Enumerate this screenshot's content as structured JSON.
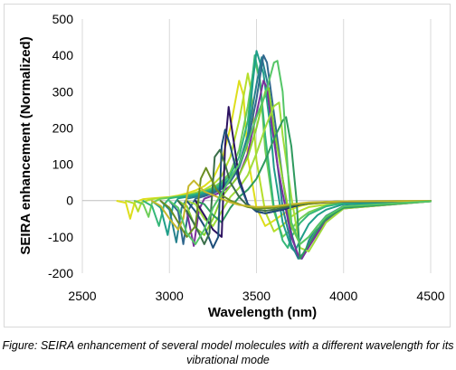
{
  "chart_data": {
    "type": "line",
    "xlabel": "Wavelength (nm)",
    "ylabel": "SEIRA enhancement (Normalized)",
    "xlim": [
      2500,
      4500
    ],
    "ylim": [
      -200,
      500
    ],
    "xticks": [
      2500,
      3000,
      3500,
      4000,
      4500
    ],
    "yticks": [
      -200,
      -100,
      0,
      100,
      200,
      300,
      400,
      500
    ],
    "grid": "vertical",
    "legend": "none",
    "series": [
      {
        "color": "#dede1c",
        "x": [
          2700,
          2750,
          2775,
          2800,
          2850,
          2900,
          2950,
          3000,
          3050,
          3100,
          3150,
          3200,
          3250,
          3300,
          3350,
          3400,
          3425,
          3450,
          3500,
          3550,
          3600,
          3650,
          3700,
          3750,
          3800,
          3900,
          4000,
          4500
        ],
        "y": [
          -1,
          -6,
          -50,
          -5,
          4,
          6,
          8,
          10,
          14,
          20,
          28,
          40,
          60,
          110,
          200,
          330,
          290,
          120,
          -20,
          -70,
          -55,
          -38,
          -24,
          -15,
          -10,
          -5,
          -3,
          -1
        ]
      },
      {
        "color": "#b5de2b",
        "x": [
          2750,
          2800,
          2820,
          2840,
          2900,
          2950,
          3000,
          3050,
          3100,
          3150,
          3200,
          3250,
          3300,
          3350,
          3400,
          3450,
          3470,
          3500,
          3550,
          3600,
          3650,
          3700,
          3750,
          3800,
          3900,
          4000,
          4500
        ],
        "y": [
          -1,
          -8,
          -30,
          -5,
          4,
          7,
          9,
          12,
          16,
          22,
          30,
          44,
          68,
          120,
          220,
          350,
          300,
          110,
          -30,
          -85,
          -68,
          -44,
          -28,
          -18,
          -11,
          -5,
          -1
        ]
      },
      {
        "color": "#6ece58",
        "x": [
          2800,
          2850,
          2880,
          2900,
          2950,
          3000,
          3050,
          3100,
          3150,
          3200,
          3250,
          3300,
          3350,
          3400,
          3450,
          3490,
          3520,
          3550,
          3600,
          3650,
          3700,
          3750,
          3800,
          3900,
          4000,
          4500
        ],
        "y": [
          -1,
          -10,
          -45,
          -6,
          5,
          8,
          11,
          14,
          19,
          26,
          36,
          52,
          78,
          140,
          260,
          385,
          330,
          140,
          -30,
          -100,
          -78,
          -50,
          -32,
          -14,
          -6,
          -1
        ]
      },
      {
        "color": "#35b779",
        "x": [
          2850,
          2900,
          2940,
          2970,
          3000,
          3050,
          3100,
          3150,
          3200,
          3250,
          3300,
          3350,
          3400,
          3450,
          3490,
          3520,
          3550,
          3600,
          3650,
          3680,
          3700,
          3750,
          3800,
          3900,
          4000,
          4500
        ],
        "y": [
          -1,
          -15,
          -70,
          -10,
          6,
          10,
          14,
          18,
          24,
          32,
          46,
          70,
          120,
          220,
          400,
          330,
          180,
          -20,
          -110,
          -130,
          -100,
          -62,
          -38,
          -16,
          -7,
          -1
        ]
      },
      {
        "color": "#1f9e89",
        "x": [
          2900,
          2950,
          2990,
          3020,
          3050,
          3100,
          3150,
          3200,
          3250,
          3300,
          3350,
          3400,
          3450,
          3480,
          3500,
          3540,
          3580,
          3600,
          3650,
          3700,
          3720,
          3750,
          3800,
          3850,
          3900,
          4000,
          4500
        ],
        "y": [
          -1,
          -20,
          -95,
          -15,
          6,
          10,
          14,
          20,
          28,
          40,
          62,
          100,
          180,
          330,
          412,
          350,
          200,
          90,
          -60,
          -130,
          -140,
          -110,
          -65,
          -40,
          -25,
          -10,
          -1
        ]
      },
      {
        "color": "#26828e",
        "x": [
          2950,
          3000,
          3040,
          3070,
          3100,
          3150,
          3200,
          3250,
          3300,
          3350,
          3400,
          3450,
          3500,
          3530,
          3560,
          3600,
          3650,
          3700,
          3740,
          3780,
          3800,
          3850,
          3900,
          4000,
          4500
        ],
        "y": [
          -1,
          -25,
          -115,
          -20,
          5,
          10,
          16,
          24,
          36,
          58,
          100,
          180,
          320,
          395,
          330,
          180,
          -20,
          -120,
          -160,
          -140,
          -110,
          -70,
          -42,
          -15,
          -1
        ]
      },
      {
        "color": "#31688e",
        "x": [
          3000,
          3050,
          3080,
          3110,
          3150,
          3200,
          3250,
          3300,
          3350,
          3400,
          3450,
          3500,
          3540,
          3560,
          3600,
          3650,
          3700,
          3740,
          3760,
          3800,
          3850,
          3900,
          4000,
          4500
        ],
        "y": [
          -1,
          -30,
          -120,
          -25,
          5,
          12,
          20,
          32,
          52,
          90,
          160,
          280,
          400,
          380,
          240,
          60,
          -90,
          -155,
          -160,
          -125,
          -85,
          -55,
          -20,
          -2
        ]
      },
      {
        "color": "#7b2f9b",
        "x": [
          3050,
          3100,
          3140,
          3170,
          3200,
          3250,
          3300,
          3350,
          3400,
          3450,
          3500,
          3540,
          3560,
          3590,
          3620,
          3650,
          3700,
          3740,
          3760,
          3800,
          3850,
          3900,
          4000,
          4500
        ],
        "y": [
          -1,
          -30,
          -125,
          -25,
          5,
          14,
          24,
          40,
          70,
          130,
          240,
          330,
          310,
          200,
          100,
          20,
          -100,
          -150,
          -160,
          -128,
          -90,
          -58,
          -22,
          -2
        ]
      },
      {
        "color": "#8ad12f",
        "x": [
          3050,
          3100,
          3150,
          3200,
          3250,
          3300,
          3350,
          3400,
          3450,
          3500,
          3550,
          3570,
          3600,
          3650,
          3700,
          3750,
          3800,
          3850,
          3900,
          4000,
          4500
        ],
        "y": [
          -1,
          -15,
          -75,
          -95,
          -50,
          10,
          40,
          70,
          120,
          200,
          300,
          310,
          200,
          60,
          -70,
          -120,
          -100,
          -70,
          -45,
          -18,
          -2
        ]
      },
      {
        "color": "#a0dc3c",
        "x": [
          3100,
          3150,
          3200,
          3250,
          3300,
          3350,
          3400,
          3450,
          3500,
          3550,
          3600,
          3630,
          3650,
          3700,
          3750,
          3800,
          3850,
          3900,
          4000,
          4500
        ],
        "y": [
          -1,
          -10,
          -50,
          -70,
          -30,
          10,
          35,
          70,
          130,
          200,
          260,
          270,
          180,
          10,
          -130,
          -140,
          -100,
          -60,
          -22,
          -2
        ]
      },
      {
        "color": "#2e9a5e",
        "x": [
          3150,
          3200,
          3250,
          3300,
          3350,
          3400,
          3450,
          3500,
          3550,
          3600,
          3650,
          3670,
          3700,
          3730,
          3750,
          3800,
          3850,
          3900,
          4000,
          4500
        ],
        "y": [
          -1,
          -10,
          -40,
          -60,
          -20,
          10,
          30,
          60,
          110,
          170,
          220,
          230,
          150,
          0,
          -160,
          -120,
          -80,
          -50,
          -20,
          -2
        ]
      },
      {
        "color": "#2d1260",
        "x": [
          3150,
          3200,
          3250,
          3300,
          3320,
          3340,
          3370,
          3400,
          3450,
          3500,
          3550,
          3600,
          3650,
          3700,
          3750,
          3800,
          3900,
          4000,
          4500
        ],
        "y": [
          -1,
          -40,
          -80,
          -100,
          150,
          258,
          160,
          60,
          -10,
          -30,
          -35,
          -30,
          -25,
          -18,
          -12,
          -8,
          -5,
          -3,
          -1
        ]
      },
      {
        "color": "#1e4e7a",
        "x": [
          3100,
          3150,
          3200,
          3250,
          3280,
          3300,
          3320,
          3350,
          3400,
          3450,
          3500,
          3550,
          3600,
          3650,
          3700,
          3750,
          3800,
          3900,
          4000,
          4500
        ],
        "y": [
          -1,
          -30,
          -70,
          -130,
          -100,
          150,
          195,
          150,
          50,
          -10,
          -30,
          -35,
          -30,
          -24,
          -16,
          -10,
          -7,
          -4,
          -2,
          -1
        ]
      },
      {
        "color": "#3b6f4a",
        "x": [
          3050,
          3100,
          3150,
          3200,
          3230,
          3260,
          3290,
          3320,
          3350,
          3400,
          3450,
          3500,
          3550,
          3600,
          3700,
          3800,
          3900,
          4000,
          4500
        ],
        "y": [
          -1,
          -30,
          -70,
          -120,
          -90,
          120,
          140,
          100,
          50,
          10,
          -15,
          -25,
          -28,
          -25,
          -15,
          -8,
          -4,
          -2,
          -1
        ]
      },
      {
        "color": "#6b8e23",
        "x": [
          2950,
          3000,
          3050,
          3100,
          3150,
          3180,
          3210,
          3240,
          3270,
          3300,
          3350,
          3400,
          3450,
          3500,
          3600,
          3700,
          3800,
          4000,
          4500
        ],
        "y": [
          -1,
          -20,
          -60,
          -100,
          -70,
          60,
          90,
          60,
          30,
          15,
          0,
          -10,
          -18,
          -22,
          -20,
          -12,
          -6,
          -2,
          -1
        ]
      },
      {
        "color": "#c6b82c",
        "x": [
          2900,
          2950,
          3000,
          3050,
          3080,
          3110,
          3140,
          3170,
          3200,
          3250,
          3300,
          3350,
          3400,
          3500,
          3600,
          3700,
          3800,
          4000,
          4500
        ],
        "y": [
          -1,
          -15,
          -50,
          -80,
          -50,
          40,
          55,
          40,
          25,
          15,
          5,
          -5,
          -12,
          -18,
          -16,
          -10,
          -5,
          -2,
          -1
        ]
      },
      {
        "color": "#55c667",
        "x": [
          3000,
          3050,
          3100,
          3150,
          3200,
          3250,
          3300,
          3350,
          3400,
          3450,
          3500,
          3550,
          3600,
          3620,
          3650,
          3700,
          3750,
          3800,
          3850,
          3900,
          4000,
          4500
        ],
        "y": [
          -1,
          -20,
          -90,
          -120,
          -80,
          -20,
          20,
          60,
          100,
          160,
          230,
          290,
          380,
          385,
          300,
          -60,
          -120,
          -100,
          -70,
          -44,
          -16,
          -2
        ]
      }
    ]
  },
  "caption": "Figure: SEIRA enhancement of several model molecules with a different wavelength for its vibrational mode"
}
